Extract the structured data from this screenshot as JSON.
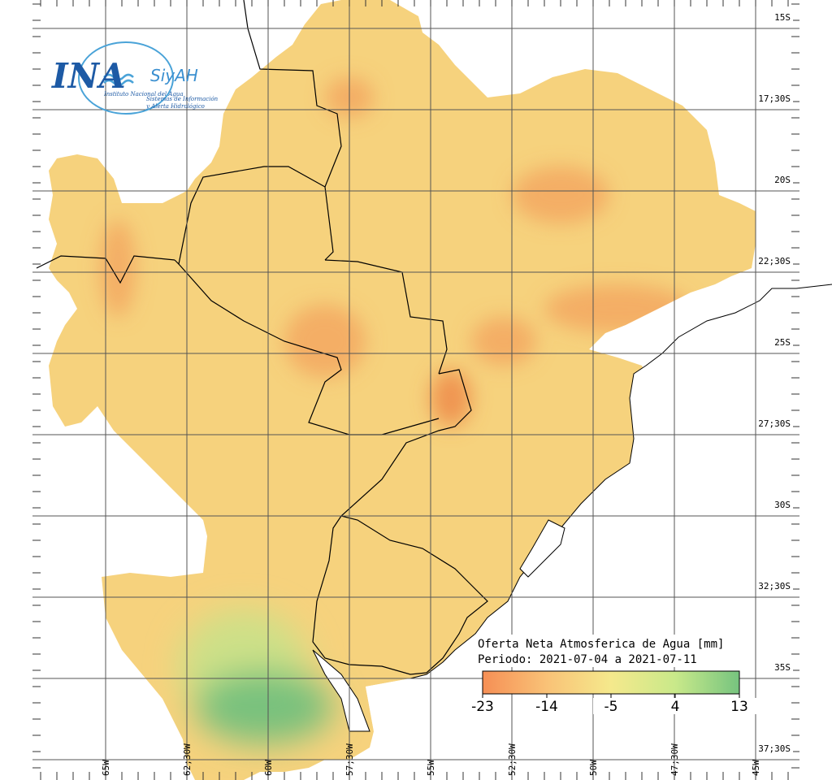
{
  "logo": {
    "name": "INA",
    "brand": "SiyAH",
    "org": "Instituto Nacional del Agua",
    "system_line1": "Sistemas de Información",
    "system_line2": "y Alerta Hidrológico"
  },
  "title": {
    "line1": "Oferta Neta Atmosferica de Agua [mm]",
    "line2": "Periodo: 2021-07-04 a 2021-07-11"
  },
  "colorbar": {
    "ticks": [
      "-23",
      "-14",
      "-5",
      "4",
      "13"
    ],
    "colors": [
      "#f68f55",
      "#f9c277",
      "#f5e98c",
      "#c9e98a",
      "#76c47f"
    ]
  },
  "lat_labels": [
    "15S",
    "17;30S",
    "20S",
    "22;30S",
    "25S",
    "27;30S",
    "30S",
    "32;30S",
    "35S",
    "37;30S"
  ],
  "lon_labels": [
    "65W",
    "62;30W",
    "60W",
    "57;30W",
    "55W",
    "52;30W",
    "50W",
    "47;30W",
    "45W"
  ],
  "colors": {
    "base": "#f6d27d",
    "dry": "#f3a25e",
    "very_dry": "#ee8f4d",
    "wet": "#c6e38a",
    "very_wet": "#74c07c",
    "ocean": "#ffffff",
    "grid": "#555555",
    "border": "#000000"
  }
}
